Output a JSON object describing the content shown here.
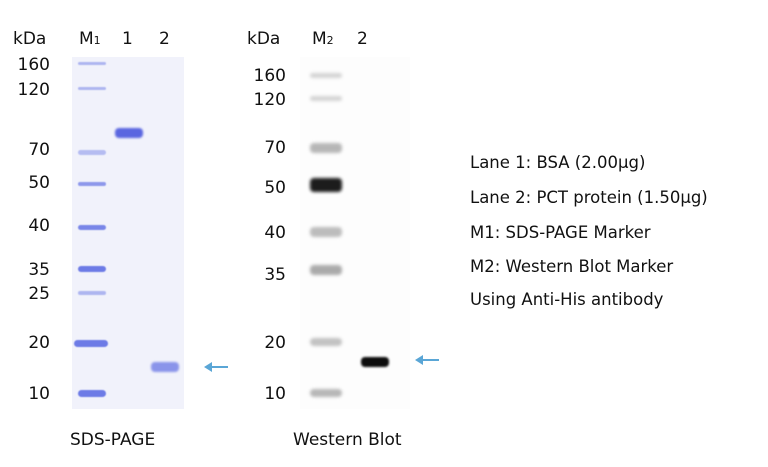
{
  "sds_page": {
    "caption": "SDS-PAGE",
    "unit": "kDa",
    "lane_labels": {
      "marker": "M",
      "marker_sub": "1",
      "lane1": "1",
      "lane2": "2"
    },
    "marker_kda": [
      "160",
      "120",
      "70",
      "50",
      "40",
      "35",
      "25",
      "20",
      "10"
    ],
    "band_color": "#6d7be6"
  },
  "western_blot": {
    "caption": "Western Blot",
    "unit": "kDa",
    "lane_labels": {
      "marker": "M",
      "marker_sub": "2",
      "lane2": "2"
    },
    "marker_kda": [
      "160",
      "120",
      "70",
      "50",
      "40",
      "35",
      "20",
      "10"
    ]
  },
  "arrow_color": "#5aa6d6",
  "legend": [
    "Lane 1: BSA (2.00μg)",
    "Lane 2: PCT protein (1.50μg)",
    "M1: SDS-PAGE Marker",
    "M2: Western Blot Marker",
    "Using Anti-His antibody"
  ]
}
